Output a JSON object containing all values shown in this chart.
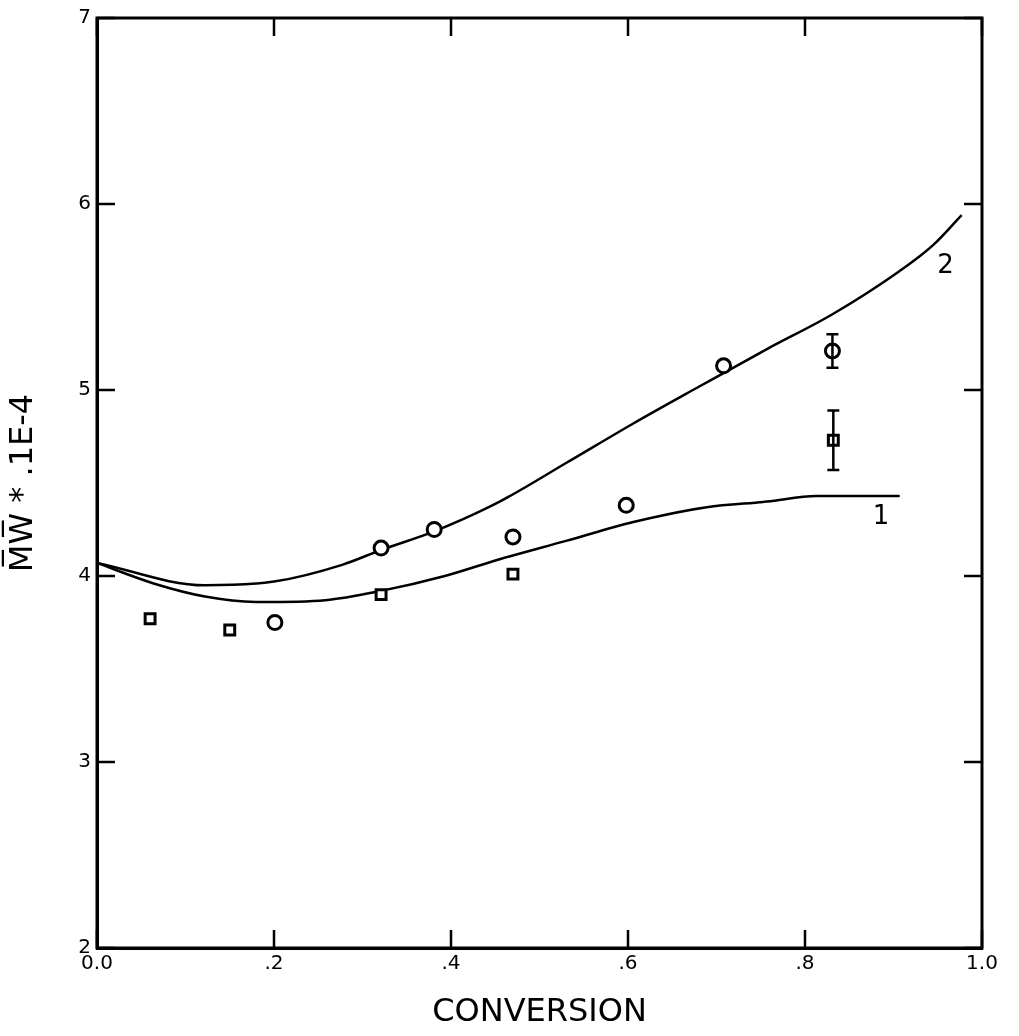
{
  "chart_data": {
    "type": "scatter",
    "xlabel": "CONVERSION",
    "ylabel": "M̅W̅ * .1E-4",
    "xlim": [
      0,
      1
    ],
    "xticks": [
      {
        "value": 0,
        "label": "0.0"
      },
      {
        "value": 0.2,
        "label": ".2"
      },
      {
        "value": 0.4,
        "label": ".4"
      },
      {
        "value": 0.6,
        "label": ".6"
      },
      {
        "value": 0.8,
        "label": ".8"
      },
      {
        "value": 1,
        "label": "1.0"
      }
    ],
    "ylim": [
      2,
      7
    ],
    "yticks": [
      2,
      3,
      4,
      5,
      6,
      7
    ],
    "series": [
      {
        "type": "scatter",
        "marker": "square",
        "color": "#000000",
        "x": [
          0.06,
          0.15,
          0.321,
          0.47,
          0.832
        ],
        "values": [
          3.77,
          3.71,
          3.9,
          4.01,
          4.73
        ],
        "errors": [
          null,
          null,
          null,
          null,
          0.16
        ]
      },
      {
        "type": "scatter",
        "marker": "circle",
        "color": "#000000",
        "x": [
          0.201,
          0.321,
          0.381,
          0.47,
          0.598,
          0.708,
          0.831
        ],
        "values": [
          3.75,
          4.15,
          4.25,
          4.21,
          4.38,
          5.13,
          5.21
        ],
        "errors": [
          null,
          null,
          null,
          null,
          null,
          null,
          0.09
        ]
      },
      {
        "type": "line",
        "name": "1",
        "marker": "none",
        "color": "#000000",
        "x": [
          0,
          0.064,
          0.122,
          0.184,
          0.258,
          0.321,
          0.393,
          0.455,
          0.531,
          0.606,
          0.689,
          0.757,
          0.813,
          0.872,
          0.907
        ],
        "values": [
          4.07,
          3.96,
          3.89,
          3.86,
          3.87,
          3.92,
          4.0,
          4.09,
          4.19,
          4.29,
          4.37,
          4.4,
          4.43,
          4.43,
          4.43
        ]
      },
      {
        "type": "line",
        "name": "2",
        "marker": "none",
        "color": "#000000",
        "x": [
          0,
          0.122,
          0.2,
          0.277,
          0.321,
          0.381,
          0.455,
          0.531,
          0.606,
          0.681,
          0.757,
          0.832,
          0.907,
          0.945,
          0.977
        ],
        "values": [
          4.07,
          3.95,
          3.97,
          4.06,
          4.14,
          4.24,
          4.4,
          4.61,
          4.82,
          5.02,
          5.22,
          5.41,
          5.64,
          5.78,
          5.94
        ]
      }
    ]
  }
}
